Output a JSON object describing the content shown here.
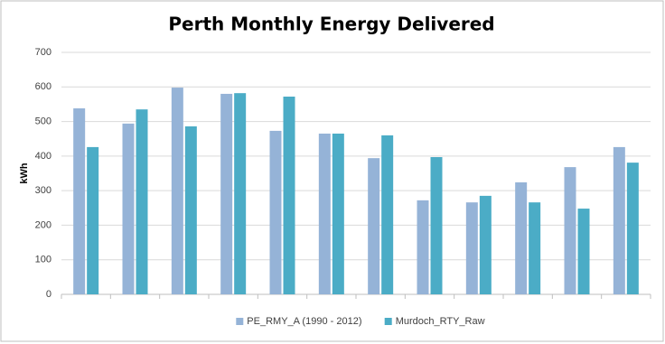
{
  "chart_data": {
    "type": "bar",
    "title": "Perth Monthly Energy Delivered",
    "y_label": "kWh",
    "categories": [
      null,
      null,
      null,
      null,
      null,
      null,
      null,
      null,
      null,
      null,
      null,
      null
    ],
    "series": [
      {
        "name": "PE_RMY_A (1990 - 2012)",
        "color": "#95b3d7",
        "values": [
          538,
          494,
          598,
          580,
          473,
          465,
          394,
          272,
          266,
          324,
          368,
          426
        ]
      },
      {
        "name": "Murdoch_RTY_Raw",
        "color": "#4bacc6",
        "values": [
          426,
          535,
          486,
          582,
          572,
          465,
          460,
          397,
          285,
          266,
          248,
          381
        ]
      }
    ],
    "ylim": [
      0,
      700
    ],
    "yticks": [
      0,
      100,
      200,
      300,
      400,
      500,
      600,
      700
    ],
    "grid": true,
    "legend": "bottom"
  }
}
